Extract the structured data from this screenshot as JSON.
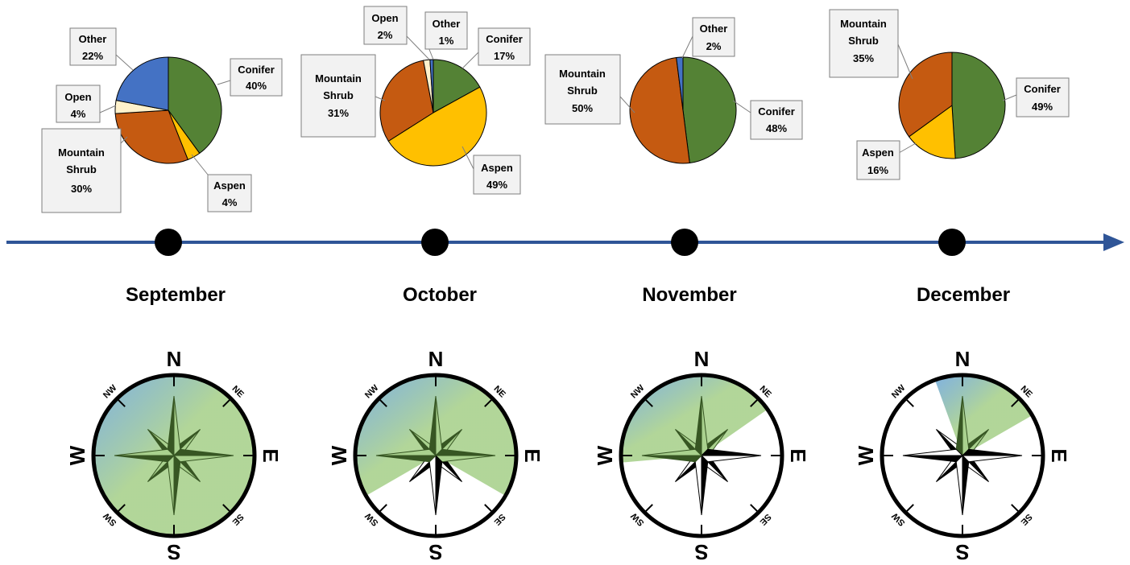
{
  "colors": {
    "Conifer": "#548235",
    "Aspen": "#ffc000",
    "Mountain Shrub": "#c55a11",
    "Open": "#fff2cc",
    "Other": "#4472c4",
    "timeline": "#2f5597",
    "compass_fill_green": "#a9d18e",
    "compass_fill_blue": "#6fa8c7",
    "compass_rose_dark": "#375623"
  },
  "chart_data": [
    {
      "type": "pie",
      "month": "September",
      "slices": [
        {
          "label": "Conifer",
          "value": 40,
          "display": "40%"
        },
        {
          "label": "Aspen",
          "value": 4,
          "display": "4%"
        },
        {
          "label": "Mountain Shrub",
          "value": 30,
          "display": "30%"
        },
        {
          "label": "Open",
          "value": 4,
          "display": "4%"
        },
        {
          "label": "Other",
          "value": 22,
          "display": "22%"
        }
      ]
    },
    {
      "type": "pie",
      "month": "October",
      "slices": [
        {
          "label": "Conifer",
          "value": 17,
          "display": "17%"
        },
        {
          "label": "Aspen",
          "value": 49,
          "display": "49%"
        },
        {
          "label": "Mountain Shrub",
          "value": 31,
          "display": "31%"
        },
        {
          "label": "Open",
          "value": 2,
          "display": "2%"
        },
        {
          "label": "Other",
          "value": 1,
          "display": "1%"
        }
      ]
    },
    {
      "type": "pie",
      "month": "November",
      "slices": [
        {
          "label": "Conifer",
          "value": 48,
          "display": "48%"
        },
        {
          "label": "Mountain Shrub",
          "value": 50,
          "display": "50%"
        },
        {
          "label": "Other",
          "value": 2,
          "display": "2%"
        }
      ]
    },
    {
      "type": "pie",
      "month": "December",
      "slices": [
        {
          "label": "Conifer",
          "value": 49,
          "display": "49%"
        },
        {
          "label": "Aspen",
          "value": 16,
          "display": "16%"
        },
        {
          "label": "Mountain Shrub",
          "value": 35,
          "display": "35%"
        }
      ]
    }
  ],
  "timeline": {
    "months": [
      "September",
      "October",
      "November",
      "December"
    ]
  },
  "compass": {
    "labels": {
      "N": "N",
      "E": "E",
      "S": "S",
      "W": "W",
      "NE": "NE",
      "SE": "SE",
      "SW": "SW",
      "NW": "NW"
    },
    "aspect_shading": [
      {
        "month": "September",
        "from_deg": 0,
        "to_deg": 360
      },
      {
        "month": "October",
        "from_deg": 240,
        "to_deg": 120
      },
      {
        "month": "November",
        "from_deg": 265,
        "to_deg": 55
      },
      {
        "month": "December",
        "from_deg": 340,
        "to_deg": 60
      }
    ]
  }
}
